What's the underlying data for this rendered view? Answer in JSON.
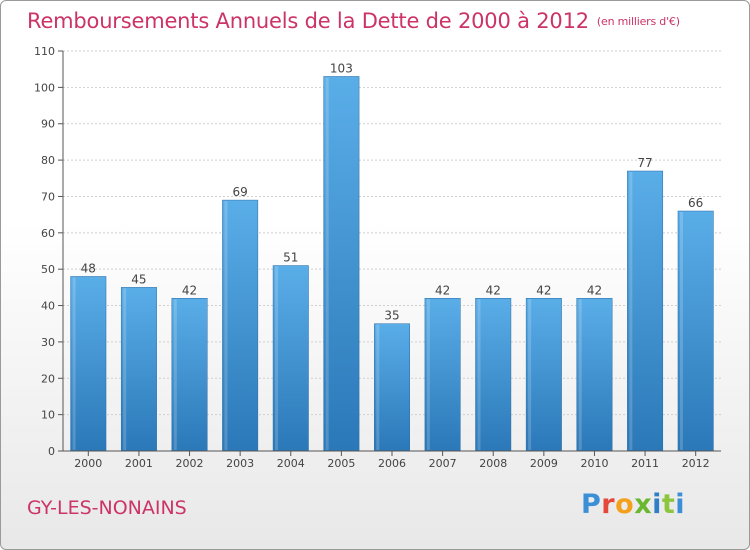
{
  "header": {
    "title": "Remboursements Annuels de la Dette de 2000 à 2012",
    "unit": "(en milliers d'€)"
  },
  "footer": {
    "commune": "GY-LES-NONAINS",
    "brand_letters": [
      "P",
      "r",
      "o",
      "x",
      "i",
      "t",
      "i"
    ]
  },
  "colors": {
    "accent": "#cc3366",
    "bar_top": "#5aaee8",
    "bar_bottom": "#2b78b8",
    "grid": "#cfcfcf",
    "axis": "#555555"
  },
  "chart_data": {
    "type": "bar",
    "categories": [
      "2000",
      "2001",
      "2002",
      "2003",
      "2004",
      "2005",
      "2006",
      "2007",
      "2008",
      "2009",
      "2010",
      "2011",
      "2012"
    ],
    "values": [
      48,
      45,
      42,
      69,
      51,
      103,
      35,
      42,
      42,
      42,
      42,
      77,
      66
    ],
    "title": "Remboursements Annuels de la Dette de 2000 à 2012",
    "xlabel": "",
    "ylabel": "",
    "ylim": [
      0,
      110
    ],
    "yticks": [
      0,
      10,
      20,
      30,
      40,
      50,
      60,
      70,
      80,
      90,
      100,
      110
    ],
    "grid": true,
    "legend": "none"
  }
}
